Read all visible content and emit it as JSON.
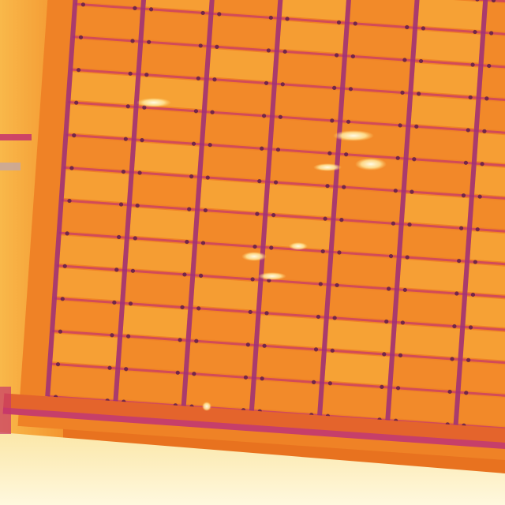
{
  "image": {
    "kind": "thermal-photograph",
    "subject": "solar-panel-array",
    "palette": "ironbow"
  },
  "colors": {
    "background_hot": "#f7a43a",
    "panel_cell": "#f28a2a",
    "panel_cell_warm": "#f6a236",
    "frame_line": "#c8386a",
    "frame_line_dark": "#9c2f7a",
    "bolt": "#5a1c4a",
    "hotspot": "#fff2b0",
    "ground_bright": "#fff8d8",
    "edge_band": "#d8407a"
  },
  "array": {
    "columns": 7,
    "rows": 13,
    "hotspot_count": 6
  }
}
